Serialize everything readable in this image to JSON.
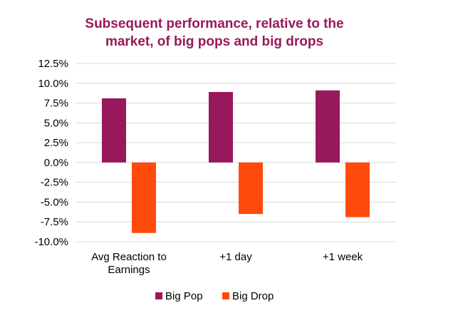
{
  "colors": {
    "title": "#98195b",
    "grid": "#d9d9d9",
    "text": "#000000",
    "background": "#ffffff"
  },
  "chart_data": {
    "type": "bar",
    "title_lines": [
      "Subsequent performance, relative to the",
      "market, of big pops and big drops"
    ],
    "categories": [
      [
        "Avg Reaction to",
        "Earnings"
      ],
      [
        "+1 day"
      ],
      [
        "+1 week"
      ]
    ],
    "series": [
      {
        "name": "Big Pop",
        "color": "#98195b",
        "values": [
          8.1,
          8.9,
          9.1
        ]
      },
      {
        "name": "Big Drop",
        "color": "#ff4a0e",
        "values": [
          -8.9,
          -6.5,
          -6.9
        ]
      }
    ],
    "y_ticks": [
      "12.5%",
      "10.0%",
      "7.5%",
      "5.0%",
      "2.5%",
      "0.0%",
      "-2.5%",
      "-5.0%",
      "-7.5%",
      "-10.0%"
    ],
    "ylim": [
      -10,
      12.5
    ],
    "grid": true,
    "legend_position": "bottom",
    "xlabel": "",
    "ylabel": ""
  }
}
